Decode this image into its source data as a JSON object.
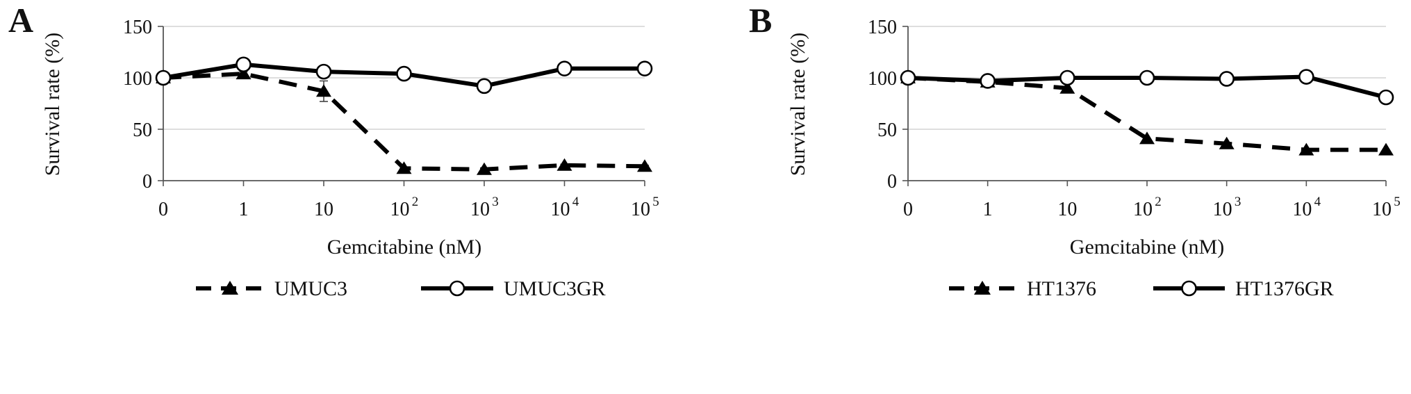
{
  "chart_data": [
    {
      "panel": "A",
      "type": "line",
      "categories": [
        "0",
        "1",
        "10",
        "10",
        "10",
        "10",
        "10"
      ],
      "category_superscripts": [
        "",
        "",
        "",
        "2",
        "3",
        "4",
        "5"
      ],
      "ylabel": "Survival rate (%)",
      "xlabel": "Gemcitabine (nM)",
      "ylim": [
        0,
        150
      ],
      "yticks": [
        "0",
        "50",
        "100",
        "150"
      ],
      "grid": true,
      "legend": "bottom",
      "series": [
        {
          "name": "UMUC3",
          "marker": "triangle",
          "line": "dashed",
          "values": [
            100,
            104,
            87,
            12,
            11,
            15,
            14
          ],
          "errors": [
            4,
            2,
            10,
            1,
            1,
            1,
            1
          ]
        },
        {
          "name": "UMUC3GR",
          "marker": "circle",
          "line": "solid",
          "values": [
            100,
            113,
            106,
            104,
            92,
            109,
            109
          ],
          "errors": [
            0,
            0,
            0,
            0,
            0,
            0,
            0
          ]
        }
      ]
    },
    {
      "panel": "B",
      "type": "line",
      "categories": [
        "0",
        "1",
        "10",
        "10",
        "10",
        "10",
        "10"
      ],
      "category_superscripts": [
        "",
        "",
        "",
        "2",
        "3",
        "4",
        "5"
      ],
      "ylabel": "Survival rate (%)",
      "xlabel": "Gemcitabine (nM)",
      "ylim": [
        0,
        150
      ],
      "yticks": [
        "0",
        "50",
        "100",
        "150"
      ],
      "grid": true,
      "legend": "bottom",
      "series": [
        {
          "name": "HT1376",
          "marker": "triangle",
          "line": "dashed",
          "values": [
            100,
            96,
            90,
            41,
            36,
            30,
            30
          ],
          "errors": [
            0,
            0,
            0,
            0,
            0,
            0,
            0
          ]
        },
        {
          "name": "HT1376GR",
          "marker": "circle",
          "line": "solid",
          "values": [
            100,
            97,
            100,
            100,
            99,
            101,
            81
          ],
          "errors": [
            0,
            0,
            0,
            0,
            0,
            0,
            0
          ]
        }
      ]
    }
  ]
}
